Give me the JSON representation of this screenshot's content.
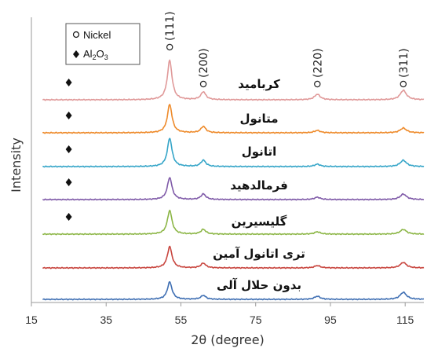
{
  "chart_data": {
    "type": "line",
    "xlabel": "2θ (degree)",
    "ylabel": "Intensity",
    "xlim": [
      15,
      120
    ],
    "xticks": [
      15,
      35,
      55,
      75,
      95,
      115
    ],
    "grid": false,
    "legend": {
      "placement": "top-left",
      "entries": [
        {
          "symbol": "circle",
          "label": "Nickel"
        },
        {
          "symbol": "diamond",
          "label_parts": [
            "Al",
            "2",
            "O",
            "3"
          ]
        }
      ]
    },
    "peak_annotations": [
      {
        "label": "(111)",
        "x": 52,
        "marker": "circle"
      },
      {
        "label": "(200)",
        "x": 61,
        "marker": "circle"
      },
      {
        "label": "(220)",
        "x": 91.5,
        "marker": "circle"
      },
      {
        "label": "(311)",
        "x": 114.5,
        "marker": "circle"
      }
    ],
    "series": [
      {
        "name": "کربامید",
        "color": "#e09999",
        "al2o3_marker_x": 25,
        "peaks": [
          {
            "x": 52,
            "h": 50
          },
          {
            "x": 61,
            "h": 10
          },
          {
            "x": 91.5,
            "h": 7
          },
          {
            "x": 114.5,
            "h": 12
          }
        ]
      },
      {
        "name": "متانول",
        "color": "#ee8a2a",
        "al2o3_marker_x": 25,
        "peaks": [
          {
            "x": 52,
            "h": 36
          },
          {
            "x": 61,
            "h": 8
          },
          {
            "x": 91.5,
            "h": 3
          },
          {
            "x": 114.5,
            "h": 6
          }
        ]
      },
      {
        "name": "اتانول",
        "color": "#35a5c8",
        "al2o3_marker_x": 25,
        "peaks": [
          {
            "x": 52,
            "h": 36
          },
          {
            "x": 61,
            "h": 8
          },
          {
            "x": 91.5,
            "h": 3
          },
          {
            "x": 114.5,
            "h": 8
          }
        ]
      },
      {
        "name": "فرمالدهید",
        "color": "#7f5aa8",
        "al2o3_marker_x": 25,
        "peaks": [
          {
            "x": 52,
            "h": 28
          },
          {
            "x": 61,
            "h": 7
          },
          {
            "x": 91.5,
            "h": 3
          },
          {
            "x": 114.5,
            "h": 7
          }
        ]
      },
      {
        "name": "گلیسیرین",
        "color": "#8cb646",
        "al2o3_marker_x": 25,
        "peaks": [
          {
            "x": 52,
            "h": 30
          },
          {
            "x": 61,
            "h": 6
          },
          {
            "x": 91.5,
            "h": 3
          },
          {
            "x": 114.5,
            "h": 6
          }
        ]
      },
      {
        "name": "تری اتانول آمین",
        "color": "#c8453e",
        "al2o3_marker_x": null,
        "peaks": [
          {
            "x": 52,
            "h": 27
          },
          {
            "x": 61,
            "h": 6
          },
          {
            "x": 91.5,
            "h": 3
          },
          {
            "x": 114.5,
            "h": 7
          }
        ]
      },
      {
        "name": "بدون حلال آلی",
        "color": "#3f6fb3",
        "al2o3_marker_x": null,
        "peaks": [
          {
            "x": 52,
            "h": 22
          },
          {
            "x": 61,
            "h": 5
          },
          {
            "x": 91.5,
            "h": 4
          },
          {
            "x": 114.5,
            "h": 9
          }
        ]
      }
    ]
  }
}
